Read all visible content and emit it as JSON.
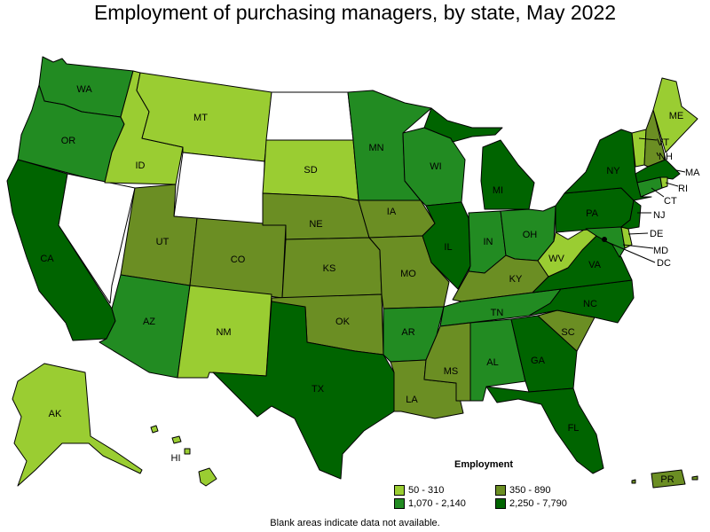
{
  "title": "Employment of purchasing managers, by state, May 2022",
  "legend": {
    "title": "Employment",
    "items": [
      {
        "range": "50 - 310",
        "color": "#9acd32"
      },
      {
        "range": "350 - 890",
        "color": "#6b8e23"
      },
      {
        "range": "1,070 - 2,140",
        "color": "#228b22"
      },
      {
        "range": "2,250 - 7,790",
        "color": "#006400"
      }
    ]
  },
  "no_data_color": "#ffffff",
  "footnote": "Blank areas indicate data not available.",
  "states": {
    "WA": {
      "label": "WA",
      "bin": 2
    },
    "OR": {
      "label": "OR",
      "bin": 2
    },
    "CA": {
      "label": "CA",
      "bin": 3
    },
    "NV": {
      "label": "",
      "bin": null
    },
    "ID": {
      "label": "ID",
      "bin": 0
    },
    "MT": {
      "label": "MT",
      "bin": 0
    },
    "WY": {
      "label": "",
      "bin": null
    },
    "UT": {
      "label": "UT",
      "bin": 1
    },
    "AZ": {
      "label": "AZ",
      "bin": 2
    },
    "CO": {
      "label": "CO",
      "bin": 1
    },
    "NM": {
      "label": "NM",
      "bin": 0
    },
    "ND": {
      "label": "",
      "bin": null
    },
    "SD": {
      "label": "SD",
      "bin": 0
    },
    "NE": {
      "label": "NE",
      "bin": 1
    },
    "KS": {
      "label": "KS",
      "bin": 1
    },
    "OK": {
      "label": "OK",
      "bin": 1
    },
    "TX": {
      "label": "TX",
      "bin": 3
    },
    "MN": {
      "label": "MN",
      "bin": 2
    },
    "IA": {
      "label": "IA",
      "bin": 1
    },
    "MO": {
      "label": "MO",
      "bin": 1
    },
    "AR": {
      "label": "AR",
      "bin": 2
    },
    "LA": {
      "label": "LA",
      "bin": 1
    },
    "WI": {
      "label": "WI",
      "bin": 2
    },
    "IL": {
      "label": "IL",
      "bin": 3
    },
    "MI": {
      "label": "MI",
      "bin": 3
    },
    "IN": {
      "label": "IN",
      "bin": 2
    },
    "OH": {
      "label": "OH",
      "bin": 2
    },
    "KY": {
      "label": "KY",
      "bin": 1
    },
    "TN": {
      "label": "TN",
      "bin": 2
    },
    "MS": {
      "label": "MS",
      "bin": 1
    },
    "AL": {
      "label": "AL",
      "bin": 2
    },
    "GA": {
      "label": "GA",
      "bin": 3
    },
    "FL": {
      "label": "FL",
      "bin": 3
    },
    "SC": {
      "label": "SC",
      "bin": 1
    },
    "NC": {
      "label": "NC",
      "bin": 3
    },
    "VA": {
      "label": "VA",
      "bin": 3
    },
    "WV": {
      "label": "WV",
      "bin": 0
    },
    "PA": {
      "label": "PA",
      "bin": 3
    },
    "NY": {
      "label": "NY",
      "bin": 3
    },
    "VT": {
      "label": "VT",
      "bin": 0
    },
    "NH": {
      "label": "NH",
      "bin": 1
    },
    "ME": {
      "label": "ME",
      "bin": 0
    },
    "MA": {
      "label": "MA",
      "bin": 3
    },
    "RI": {
      "label": "RI",
      "bin": 0
    },
    "CT": {
      "label": "CT",
      "bin": 2
    },
    "NJ": {
      "label": "NJ",
      "bin": 3
    },
    "DE": {
      "label": "DE",
      "bin": 0
    },
    "MD": {
      "label": "MD",
      "bin": 2
    },
    "DC": {
      "label": "DC",
      "bin": 0
    },
    "AK": {
      "label": "AK",
      "bin": 0
    },
    "HI": {
      "label": "HI",
      "bin": 0
    },
    "PR": {
      "label": "PR",
      "bin": 1
    }
  }
}
